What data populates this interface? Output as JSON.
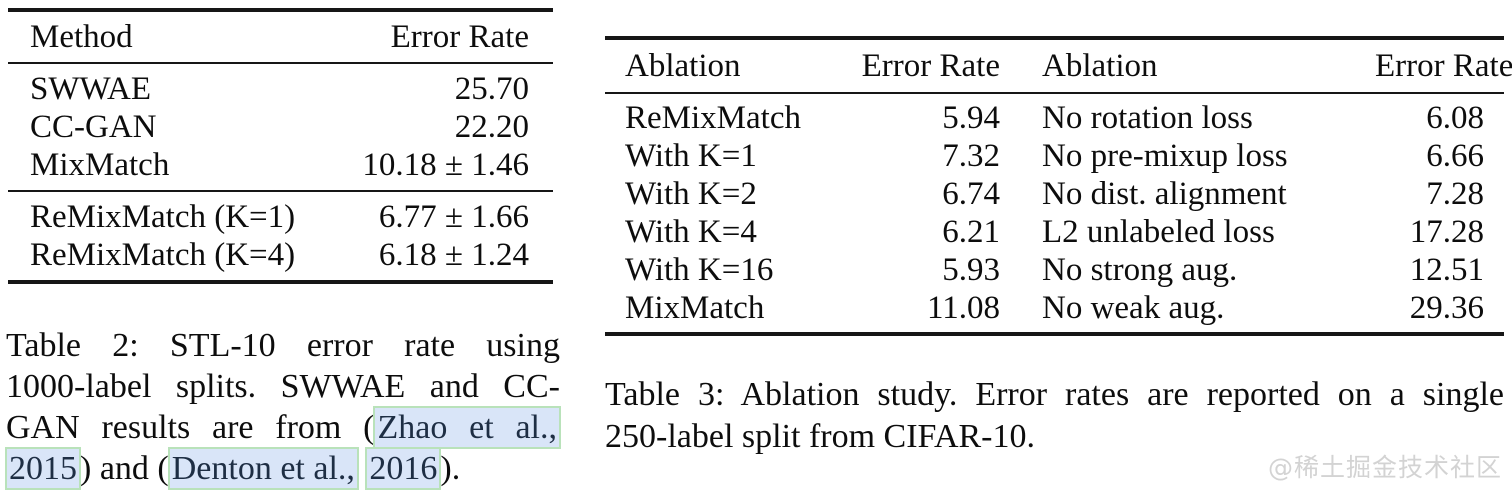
{
  "colors": {
    "text": "#0d0d0d",
    "rule": "#161616",
    "citation_text": "#1e2e44",
    "citation_highlight_bg": "#d9e5f8",
    "citation_highlight_border": "#b9e2ba",
    "watermark": "#d3d3d3"
  },
  "table2": {
    "headers": [
      "Method",
      "Error Rate"
    ],
    "rows_top": [
      {
        "method": "SWWAE",
        "error": "25.70"
      },
      {
        "method": "CC-GAN",
        "error": "22.20"
      },
      {
        "method": "MixMatch",
        "error": "10.18 ± 1.46"
      }
    ],
    "rows_bottom": [
      {
        "method": "ReMixMatch (K=1)",
        "error": "6.77 ± 1.66"
      },
      {
        "method": "ReMixMatch (K=4)",
        "error": "6.18 ± 1.24"
      }
    ]
  },
  "caption2": {
    "l1": "Table 2: STL-10 error rate using",
    "l2": "1000-label splits. SWWAE and CC-",
    "l3_pre": "GAN results are from (",
    "l3_link_author1": "Zhao et al.,",
    "l4_link_year1": "2015",
    "l4_mid": ") and (",
    "l4_link_author2": "Denton et al.,",
    "l4_link_year2": "2016",
    "l4_end": ")."
  },
  "table3": {
    "headers": [
      "Ablation",
      "Error Rate",
      "Ablation",
      "Error Rate"
    ],
    "rows": [
      {
        "a1": "ReMixMatch",
        "e1": "5.94",
        "a2": "No rotation loss",
        "e2": "6.08"
      },
      {
        "a1": "With K=1",
        "e1": "7.32",
        "a2": "No pre-mixup loss",
        "e2": "6.66"
      },
      {
        "a1": "With K=2",
        "e1": "6.74",
        "a2": "No dist. alignment",
        "e2": "7.28"
      },
      {
        "a1": "With K=4",
        "e1": "6.21",
        "a2": "L2 unlabeled loss",
        "e2": "17.28"
      },
      {
        "a1": "With K=16",
        "e1": "5.93",
        "a2": "No strong aug.",
        "e2": "12.51"
      },
      {
        "a1": "MixMatch",
        "e1": "11.08",
        "a2": "No weak aug.",
        "e2": "29.36"
      }
    ]
  },
  "caption3": {
    "l1": "Table 3: Ablation study. Error rates are reported on a single",
    "l2": "250-label split from CIFAR-10."
  },
  "watermark": "@稀土掘金技术社区"
}
